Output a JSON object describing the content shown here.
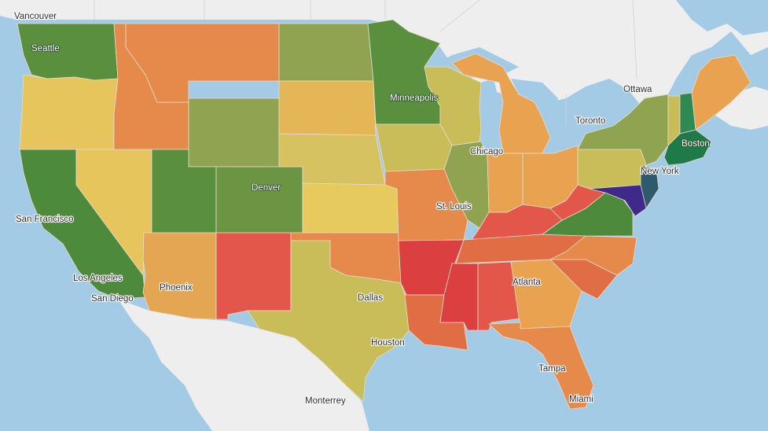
{
  "map": {
    "cities": [
      {
        "id": "vancouver",
        "label": "Vancouver"
      },
      {
        "id": "seattle",
        "label": "Seattle"
      },
      {
        "id": "ottawa",
        "label": "Ottawa"
      },
      {
        "id": "minneapolis",
        "label": "Minneapolis"
      },
      {
        "id": "toronto",
        "label": "Toronto"
      },
      {
        "id": "boston",
        "label": "Boston"
      },
      {
        "id": "chicago",
        "label": "Chicago"
      },
      {
        "id": "new-york",
        "label": "New York"
      },
      {
        "id": "denver",
        "label": "Denver"
      },
      {
        "id": "san-francisco",
        "label": "San Francisco"
      },
      {
        "id": "st-louis",
        "label": "St. Louis"
      },
      {
        "id": "los-angeles",
        "label": "Los Angeles"
      },
      {
        "id": "san-diego",
        "label": "San Diego"
      },
      {
        "id": "phoenix",
        "label": "Phoenix"
      },
      {
        "id": "atlanta",
        "label": "Atlanta"
      },
      {
        "id": "dallas",
        "label": "Dallas"
      },
      {
        "id": "houston",
        "label": "Houston"
      },
      {
        "id": "tampa",
        "label": "Tampa"
      },
      {
        "id": "miami",
        "label": "Miami"
      },
      {
        "id": "monterrey",
        "label": "Monterrey"
      }
    ],
    "colors": {
      "water": "#a4cbe6",
      "land": "#eeeeee",
      "dark_green": "#4e8a3c",
      "green": "#5a8f3e",
      "olive": "#8fa350",
      "yellow_olive": "#c9bd5a",
      "yellow": "#e6c65c",
      "light_orange": "#e9a350",
      "orange": "#e58a4a",
      "dark_orange": "#e06d43",
      "red_orange": "#e2574a",
      "red": "#dc3f3f",
      "teal": "#1f7a4a",
      "slate": "#2e5a6e",
      "purple": "#3e2a8a"
    }
  }
}
